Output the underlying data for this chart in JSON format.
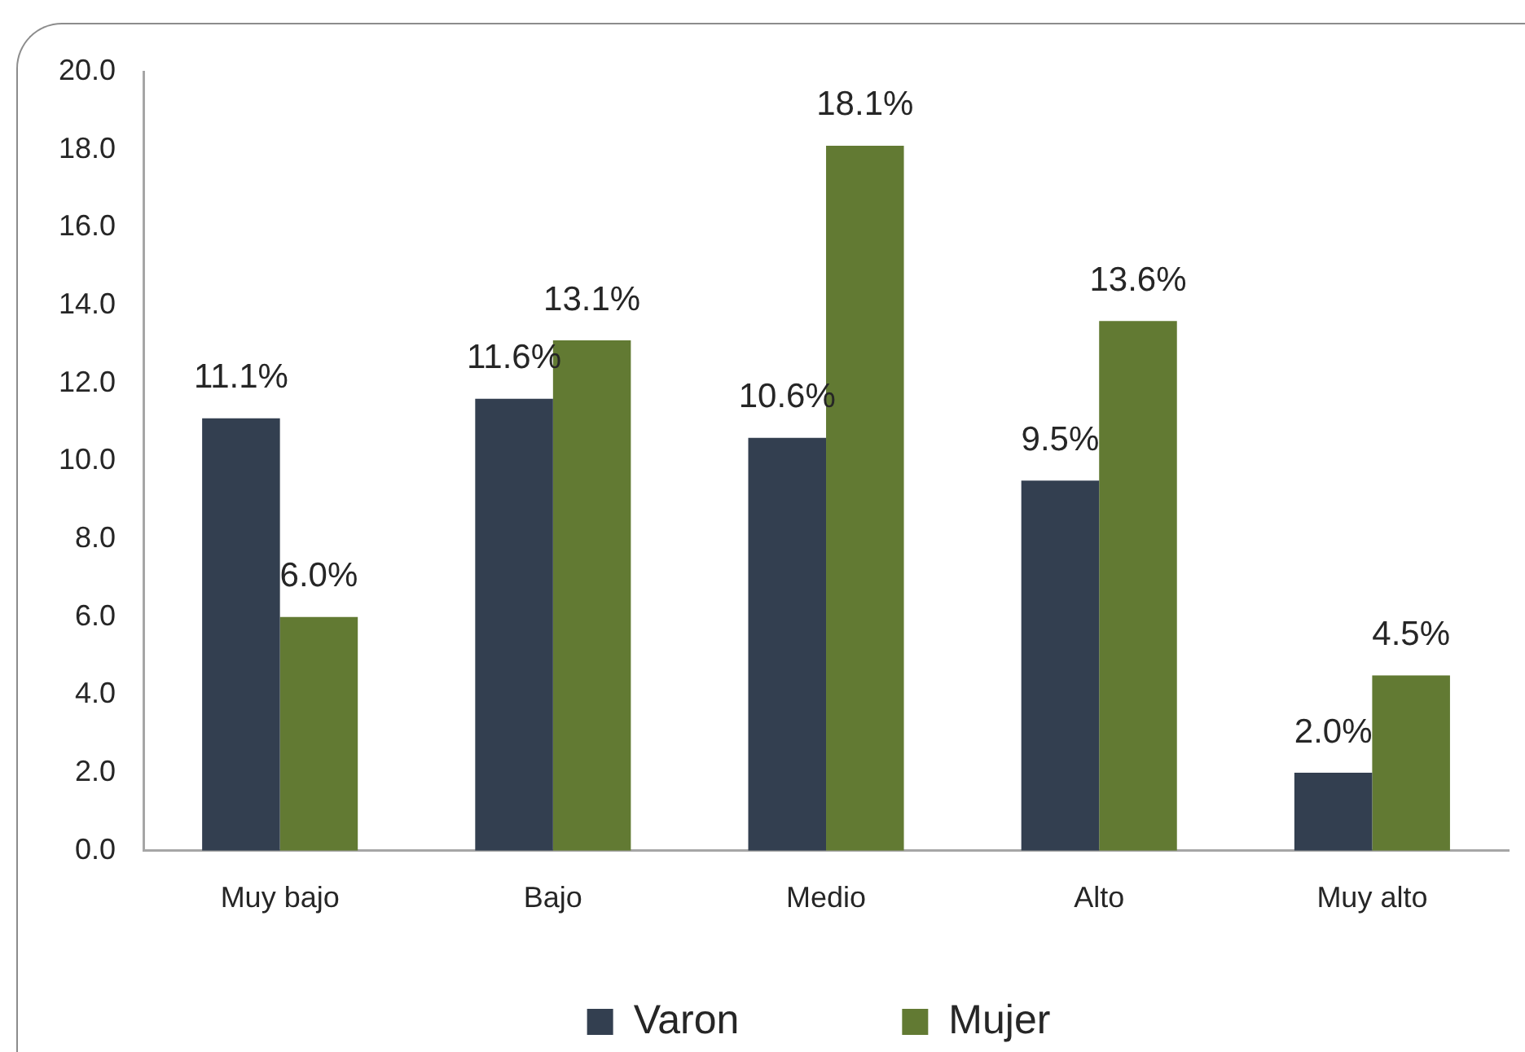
{
  "chart_data": {
    "type": "bar",
    "categories": [
      "Muy bajo",
      "Bajo",
      "Medio",
      "Alto",
      "Muy alto"
    ],
    "series": [
      {
        "name": "Varon",
        "color": "#333f50",
        "values": [
          11.1,
          11.6,
          10.6,
          9.5,
          2.0
        ],
        "value_labels": [
          "11.1%",
          "11.6%",
          "10.6%",
          "9.5%",
          "2.0%"
        ]
      },
      {
        "name": "Mujer",
        "color": "#627a33",
        "values": [
          6.0,
          13.1,
          18.1,
          13.6,
          4.5
        ],
        "value_labels": [
          "6.0%",
          "13.1%",
          "18.1%",
          "13.6%",
          "4.5%"
        ]
      }
    ],
    "ylim": [
      0,
      20
    ],
    "yticks": [
      {
        "value": 0,
        "label": "0.0"
      },
      {
        "value": 2,
        "label": "2.0"
      },
      {
        "value": 4,
        "label": "4.0"
      },
      {
        "value": 6,
        "label": "6.0"
      },
      {
        "value": 8,
        "label": "8.0"
      },
      {
        "value": 10,
        "label": "10.0"
      },
      {
        "value": 12,
        "label": "12.0"
      },
      {
        "value": 14,
        "label": "14.0"
      },
      {
        "value": 16,
        "label": "16.0"
      },
      {
        "value": 18,
        "label": "18.0"
      },
      {
        "value": 20,
        "label": "20.0"
      }
    ],
    "legend": "bottom"
  }
}
